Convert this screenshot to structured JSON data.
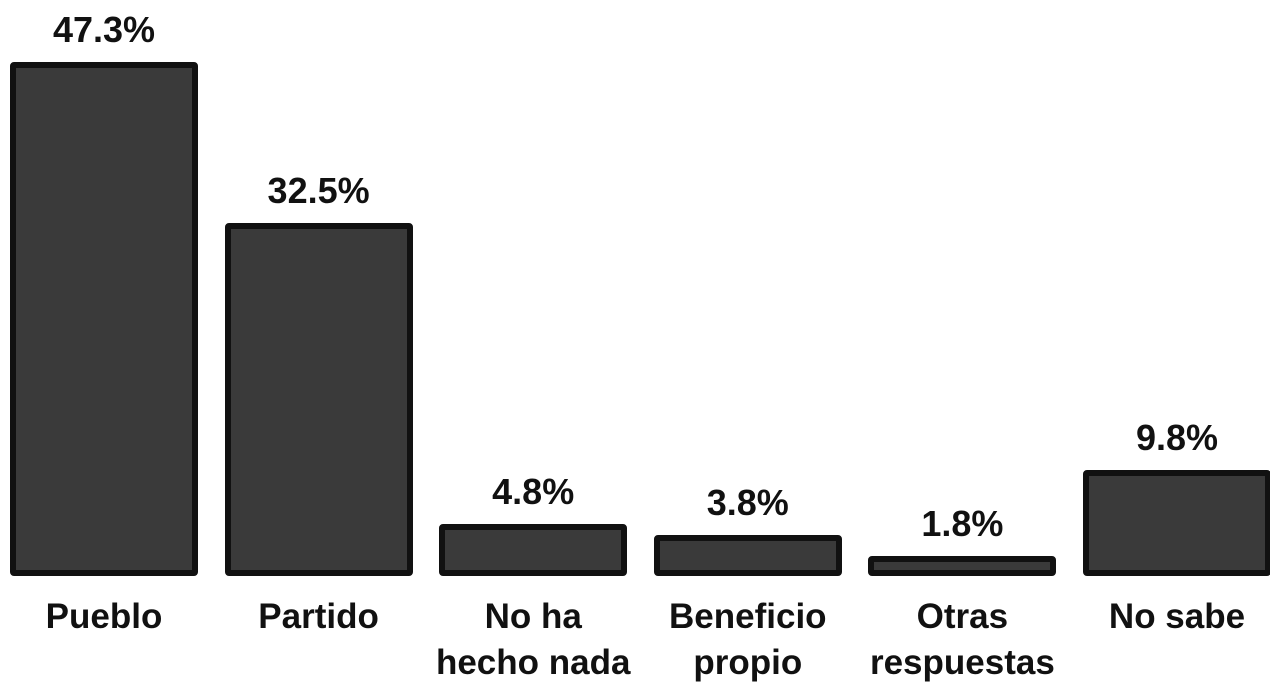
{
  "chart_data": {
    "type": "bar",
    "categories": [
      "Pueblo",
      "Partido",
      "No ha\nhecho nada",
      "Beneficio\npropio",
      "Otras\nrespuestas",
      "No sabe"
    ],
    "values": [
      47.3,
      32.5,
      4.8,
      3.8,
      1.8,
      9.8
    ],
    "value_labels": [
      "47.3%",
      "32.5%",
      "4.8%",
      "3.8%",
      "1.8%",
      "9.8%"
    ],
    "color": "#3a3a3a"
  }
}
